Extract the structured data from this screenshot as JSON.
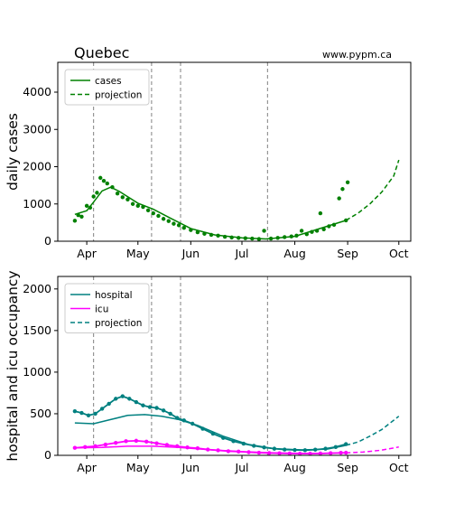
{
  "chart_data": [
    {
      "type": "line",
      "title": "Quebec",
      "annotation": "www.pypm.ca",
      "ylabel": "daily cases",
      "ylim": [
        0,
        4800
      ],
      "yticks": [
        0,
        1000,
        2000,
        3000,
        4000
      ],
      "x_start": "2021-03-15",
      "x_end": "2021-10-08",
      "xticks": [
        {
          "date": "2021-04-01",
          "label": "Apr"
        },
        {
          "date": "2021-05-01",
          "label": "May"
        },
        {
          "date": "2021-06-01",
          "label": "Jun"
        },
        {
          "date": "2021-07-01",
          "label": "Jul"
        },
        {
          "date": "2021-08-01",
          "label": "Aug"
        },
        {
          "date": "2021-09-01",
          "label": "Sep"
        },
        {
          "date": "2021-10-01",
          "label": "Oct"
        }
      ],
      "vlines": [
        "2021-04-05",
        "2021-05-09",
        "2021-05-26",
        "2021-07-16"
      ],
      "legend": {
        "position": "top-left",
        "entries": [
          {
            "label": "cases",
            "color": "#008000",
            "style": "solid"
          },
          {
            "label": "projection",
            "color": "#008000",
            "style": "dashed"
          }
        ]
      },
      "series": [
        {
          "name": "cases",
          "kind": "model",
          "color": "#008000",
          "points": [
            [
              "2021-03-25",
              720
            ],
            [
              "2021-04-01",
              820
            ],
            [
              "2021-04-05",
              1050
            ],
            [
              "2021-04-10",
              1350
            ],
            [
              "2021-04-15",
              1450
            ],
            [
              "2021-04-20",
              1340
            ],
            [
              "2021-05-01",
              1020
            ],
            [
              "2021-05-10",
              860
            ],
            [
              "2021-05-20",
              620
            ],
            [
              "2021-06-01",
              340
            ],
            [
              "2021-06-15",
              170
            ],
            [
              "2021-07-01",
              90
            ],
            [
              "2021-07-15",
              60
            ],
            [
              "2021-08-01",
              130
            ],
            [
              "2021-08-15",
              330
            ],
            [
              "2021-08-31",
              560
            ]
          ]
        },
        {
          "name": "projection",
          "kind": "projection",
          "color": "#008000",
          "points": [
            [
              "2021-08-31",
              560
            ],
            [
              "2021-09-07",
              750
            ],
            [
              "2021-09-14",
              1000
            ],
            [
              "2021-09-21",
              1320
            ],
            [
              "2021-09-28",
              1750
            ],
            [
              "2021-10-01",
              2180
            ]
          ]
        },
        {
          "name": "cases",
          "kind": "data",
          "color": "#008000",
          "points": [
            [
              "2021-03-25",
              550
            ],
            [
              "2021-03-27",
              700
            ],
            [
              "2021-03-29",
              660
            ],
            [
              "2021-04-01",
              950
            ],
            [
              "2021-04-03",
              900
            ],
            [
              "2021-04-05",
              1200
            ],
            [
              "2021-04-07",
              1300
            ],
            [
              "2021-04-09",
              1700
            ],
            [
              "2021-04-11",
              1620
            ],
            [
              "2021-04-13",
              1550
            ],
            [
              "2021-04-16",
              1450
            ],
            [
              "2021-04-19",
              1280
            ],
            [
              "2021-04-22",
              1180
            ],
            [
              "2021-04-25",
              1120
            ],
            [
              "2021-04-28",
              1000
            ],
            [
              "2021-05-01",
              950
            ],
            [
              "2021-05-04",
              920
            ],
            [
              "2021-05-07",
              830
            ],
            [
              "2021-05-10",
              750
            ],
            [
              "2021-05-13",
              680
            ],
            [
              "2021-05-16",
              600
            ],
            [
              "2021-05-19",
              540
            ],
            [
              "2021-05-22",
              470
            ],
            [
              "2021-05-25",
              430
            ],
            [
              "2021-05-28",
              360
            ],
            [
              "2021-06-01",
              300
            ],
            [
              "2021-06-05",
              240
            ],
            [
              "2021-06-09",
              200
            ],
            [
              "2021-06-13",
              170
            ],
            [
              "2021-06-17",
              150
            ],
            [
              "2021-06-21",
              120
            ],
            [
              "2021-06-25",
              100
            ],
            [
              "2021-06-29",
              90
            ],
            [
              "2021-07-03",
              80
            ],
            [
              "2021-07-07",
              70
            ],
            [
              "2021-07-11",
              60
            ],
            [
              "2021-07-14",
              280
            ],
            [
              "2021-07-18",
              70
            ],
            [
              "2021-07-22",
              90
            ],
            [
              "2021-07-26",
              110
            ],
            [
              "2021-07-30",
              130
            ],
            [
              "2021-08-02",
              150
            ],
            [
              "2021-08-05",
              280
            ],
            [
              "2021-08-08",
              190
            ],
            [
              "2021-08-11",
              250
            ],
            [
              "2021-08-14",
              280
            ],
            [
              "2021-08-16",
              750
            ],
            [
              "2021-08-18",
              320
            ],
            [
              "2021-08-21",
              400
            ],
            [
              "2021-08-24",
              440
            ],
            [
              "2021-08-27",
              1150
            ],
            [
              "2021-08-29",
              1400
            ],
            [
              "2021-08-31",
              560
            ],
            [
              "2021-09-01",
              1580
            ]
          ]
        }
      ]
    },
    {
      "type": "line",
      "ylabel": "hospital and icu occupancy",
      "ylim": [
        0,
        2150
      ],
      "yticks": [
        0,
        500,
        1000,
        1500,
        2000
      ],
      "x_start": "2021-03-15",
      "x_end": "2021-10-08",
      "xticks": [
        {
          "date": "2021-04-01",
          "label": "Apr"
        },
        {
          "date": "2021-05-01",
          "label": "May"
        },
        {
          "date": "2021-06-01",
          "label": "Jun"
        },
        {
          "date": "2021-07-01",
          "label": "Jul"
        },
        {
          "date": "2021-08-01",
          "label": "Aug"
        },
        {
          "date": "2021-09-01",
          "label": "Sep"
        },
        {
          "date": "2021-10-01",
          "label": "Oct"
        }
      ],
      "vlines": [
        "2021-04-05",
        "2021-05-09",
        "2021-05-26",
        "2021-07-16"
      ],
      "legend": {
        "position": "top-left",
        "entries": [
          {
            "label": "hospital",
            "color": "#008080",
            "style": "solid"
          },
          {
            "label": "icu",
            "color": "#ff00ff",
            "style": "solid"
          },
          {
            "label": "projection",
            "color": "#008080",
            "style": "dashed"
          }
        ]
      },
      "series": [
        {
          "name": "hospital",
          "kind": "model",
          "color": "#008080",
          "points": [
            [
              "2021-03-25",
              390
            ],
            [
              "2021-04-05",
              380
            ],
            [
              "2021-04-15",
              430
            ],
            [
              "2021-04-25",
              480
            ],
            [
              "2021-05-05",
              490
            ],
            [
              "2021-05-15",
              470
            ],
            [
              "2021-05-25",
              430
            ],
            [
              "2021-06-05",
              360
            ],
            [
              "2021-06-20",
              230
            ],
            [
              "2021-07-05",
              130
            ],
            [
              "2021-07-20",
              80
            ],
            [
              "2021-08-05",
              65
            ],
            [
              "2021-08-20",
              75
            ],
            [
              "2021-08-31",
              120
            ]
          ]
        },
        {
          "name": "hospital",
          "kind": "data",
          "color": "#008080",
          "points": [
            [
              "2021-03-25",
              530
            ],
            [
              "2021-03-29",
              510
            ],
            [
              "2021-04-02",
              480
            ],
            [
              "2021-04-06",
              500
            ],
            [
              "2021-04-10",
              560
            ],
            [
              "2021-04-14",
              620
            ],
            [
              "2021-04-18",
              680
            ],
            [
              "2021-04-22",
              710
            ],
            [
              "2021-04-26",
              680
            ],
            [
              "2021-04-30",
              640
            ],
            [
              "2021-05-04",
              600
            ],
            [
              "2021-05-08",
              580
            ],
            [
              "2021-05-12",
              570
            ],
            [
              "2021-05-16",
              540
            ],
            [
              "2021-05-20",
              500
            ],
            [
              "2021-05-24",
              450
            ],
            [
              "2021-05-28",
              420
            ],
            [
              "2021-06-02",
              380
            ],
            [
              "2021-06-08",
              320
            ],
            [
              "2021-06-14",
              260
            ],
            [
              "2021-06-20",
              210
            ],
            [
              "2021-06-26",
              170
            ],
            [
              "2021-07-02",
              140
            ],
            [
              "2021-07-08",
              115
            ],
            [
              "2021-07-14",
              95
            ],
            [
              "2021-07-20",
              80
            ],
            [
              "2021-07-26",
              70
            ],
            [
              "2021-08-01",
              65
            ],
            [
              "2021-08-07",
              62
            ],
            [
              "2021-08-13",
              68
            ],
            [
              "2021-08-19",
              80
            ],
            [
              "2021-08-25",
              100
            ],
            [
              "2021-08-31",
              135
            ]
          ]
        },
        {
          "name": "projection",
          "kind": "projection",
          "color": "#008080",
          "points": [
            [
              "2021-08-31",
              120
            ],
            [
              "2021-09-07",
              160
            ],
            [
              "2021-09-14",
              230
            ],
            [
              "2021-09-21",
              310
            ],
            [
              "2021-10-01",
              470
            ]
          ]
        },
        {
          "name": "icu",
          "kind": "model",
          "color": "#ff00ff",
          "points": [
            [
              "2021-03-25",
              90
            ],
            [
              "2021-04-10",
              95
            ],
            [
              "2021-04-25",
              110
            ],
            [
              "2021-05-10",
              110
            ],
            [
              "2021-05-25",
              95
            ],
            [
              "2021-06-10",
              70
            ],
            [
              "2021-07-01",
              45
            ],
            [
              "2021-07-20",
              30
            ],
            [
              "2021-08-10",
              22
            ],
            [
              "2021-08-31",
              30
            ]
          ]
        },
        {
          "name": "icu",
          "kind": "data",
          "color": "#ff00ff",
          "points": [
            [
              "2021-03-25",
              90
            ],
            [
              "2021-03-31",
              100
            ],
            [
              "2021-04-06",
              110
            ],
            [
              "2021-04-12",
              130
            ],
            [
              "2021-04-18",
              150
            ],
            [
              "2021-04-24",
              170
            ],
            [
              "2021-04-30",
              175
            ],
            [
              "2021-05-06",
              165
            ],
            [
              "2021-05-12",
              145
            ],
            [
              "2021-05-18",
              125
            ],
            [
              "2021-05-24",
              110
            ],
            [
              "2021-05-30",
              95
            ],
            [
              "2021-06-05",
              85
            ],
            [
              "2021-06-11",
              70
            ],
            [
              "2021-06-17",
              60
            ],
            [
              "2021-06-23",
              50
            ],
            [
              "2021-06-29",
              45
            ],
            [
              "2021-07-05",
              38
            ],
            [
              "2021-07-11",
              32
            ],
            [
              "2021-07-17",
              28
            ],
            [
              "2021-07-23",
              25
            ],
            [
              "2021-07-29",
              22
            ],
            [
              "2021-08-04",
              20
            ],
            [
              "2021-08-10",
              20
            ],
            [
              "2021-08-16",
              22
            ],
            [
              "2021-08-22",
              26
            ],
            [
              "2021-08-28",
              30
            ],
            [
              "2021-08-31",
              32
            ]
          ]
        },
        {
          "name": "projection",
          "kind": "projection",
          "color": "#ff00ff",
          "points": [
            [
              "2021-08-31",
              30
            ],
            [
              "2021-09-10",
              40
            ],
            [
              "2021-09-20",
              60
            ],
            [
              "2021-10-01",
              100
            ]
          ]
        }
      ]
    }
  ]
}
